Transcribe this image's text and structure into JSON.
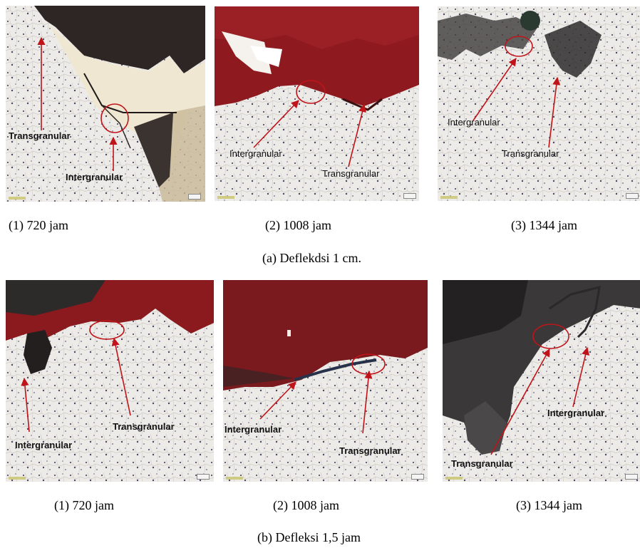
{
  "row_a": {
    "panels": [
      {
        "labels": [
          "Transgranular",
          "Intergranular"
        ],
        "caption": "(1) 720 jam"
      },
      {
        "labels": [
          "Intergranular",
          "Transgranular"
        ],
        "caption": "(2) 1008 jam"
      },
      {
        "labels": [
          "Intergranular",
          "Transgranular"
        ],
        "caption": "(3) 1344 jam"
      }
    ],
    "caption": "(a) Deflekdsi 1 cm."
  },
  "row_b": {
    "panels": [
      {
        "labels": [
          "Transgranular",
          "Intergranular"
        ],
        "caption": "(1) 720 jam"
      },
      {
        "labels": [
          "Intergranular",
          "Transgranular"
        ],
        "caption": "(2) 1008 jam"
      },
      {
        "labels": [
          "Intergranular",
          "Transgranular"
        ],
        "caption": "(3) 1344 jam"
      }
    ],
    "caption": "(b) Defleksi 1,5 jam"
  },
  "colors": {
    "arrow": "#c0141a",
    "circle": "#c0141a",
    "matrix": "#e9e8e4",
    "grain_dark": "#5a4f6a",
    "mount_resin": "#8e1a1f",
    "crack_dark": "#2c2a2a"
  }
}
